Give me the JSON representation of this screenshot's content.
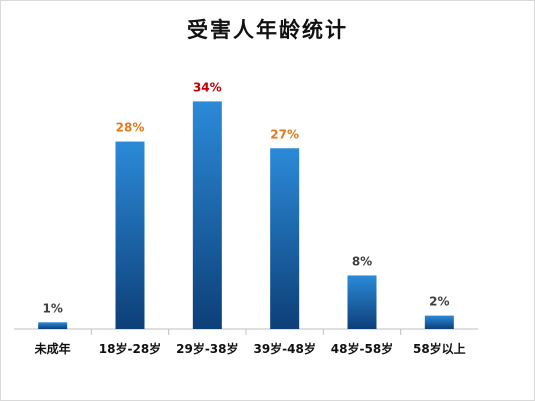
{
  "chart_data": {
    "type": "bar",
    "title": "受害人年龄统计",
    "categories": [
      "未成年",
      "18岁-28岁",
      "29岁-38岁",
      "39岁-48岁",
      "48岁-58岁",
      "58岁以上"
    ],
    "values": [
      1,
      28,
      34,
      27,
      8,
      2
    ],
    "data_labels": [
      "1%",
      "28%",
      "34%",
      "27%",
      "8%",
      "2%"
    ],
    "label_colors": [
      "#404040",
      "#e07b1f",
      "#c00000",
      "#e07b1f",
      "#404040",
      "#404040"
    ],
    "bar_color_top": "#2b8ad8",
    "bar_color_bottom": "#0d3f78",
    "ylim": [
      0,
      36
    ],
    "grid": false,
    "legend": "none"
  }
}
